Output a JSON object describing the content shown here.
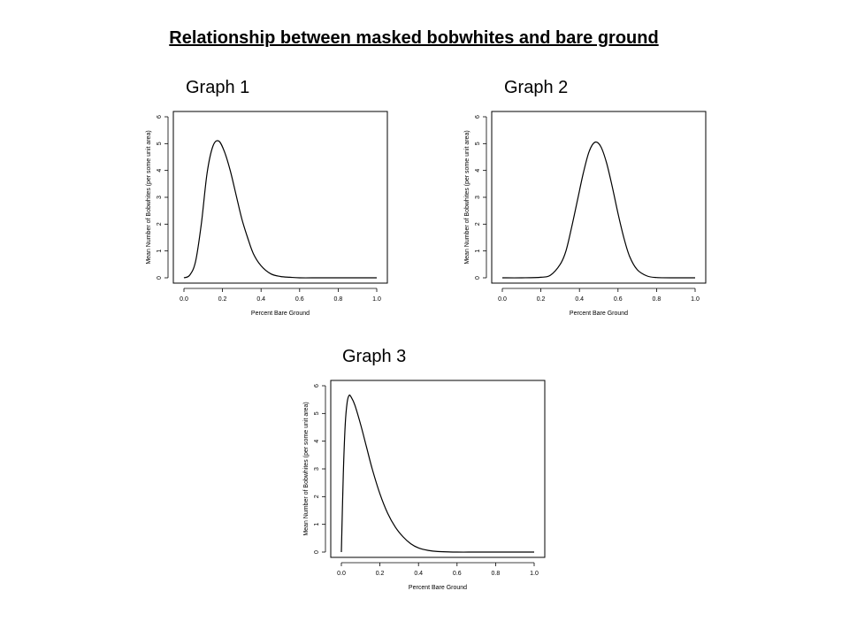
{
  "title": "Relationship between masked bobwhites and bare ground",
  "chart_data": [
    {
      "type": "line",
      "label": "Graph 1",
      "xlabel": "Percent Bare Ground",
      "ylabel": "Mean Number of Bobwhites (per some unit area)",
      "xlim": [
        0.0,
        1.0
      ],
      "ylim": [
        0,
        6
      ],
      "xticks": [
        "0.0",
        "0.2",
        "0.4",
        "0.6",
        "0.8",
        "1.0"
      ],
      "yticks": [
        "0",
        "1",
        "2",
        "3",
        "4",
        "5",
        "6"
      ],
      "grid": false,
      "series": [
        {
          "x": [
            0.0,
            0.03,
            0.06,
            0.09,
            0.12,
            0.15,
            0.18,
            0.21,
            0.24,
            0.27,
            0.3,
            0.33,
            0.36,
            0.4,
            0.45,
            0.5,
            0.55,
            0.6,
            0.7,
            0.8,
            0.9,
            1.0
          ],
          "y": [
            0.0,
            0.1,
            0.6,
            2.0,
            3.9,
            4.9,
            5.1,
            4.7,
            4.0,
            3.1,
            2.2,
            1.5,
            0.9,
            0.45,
            0.15,
            0.05,
            0.02,
            0.0,
            0.0,
            0.0,
            0.0,
            0.0
          ]
        }
      ]
    },
    {
      "type": "line",
      "label": "Graph 2",
      "xlabel": "Percent Bare Ground",
      "ylabel": "Mean Number of Bobwhites (per some unit area)",
      "xlim": [
        0.0,
        1.0
      ],
      "ylim": [
        0,
        6
      ],
      "xticks": [
        "0.0",
        "0.2",
        "0.4",
        "0.6",
        "0.8",
        "1.0"
      ],
      "yticks": [
        "0",
        "1",
        "2",
        "3",
        "4",
        "5",
        "6"
      ],
      "grid": false,
      "series": [
        {
          "x": [
            0.0,
            0.1,
            0.2,
            0.25,
            0.3,
            0.33,
            0.36,
            0.39,
            0.42,
            0.45,
            0.48,
            0.51,
            0.54,
            0.57,
            0.6,
            0.63,
            0.66,
            0.7,
            0.75,
            0.8,
            0.9,
            1.0
          ],
          "y": [
            0.0,
            0.0,
            0.02,
            0.1,
            0.5,
            1.0,
            1.9,
            2.9,
            3.9,
            4.7,
            5.05,
            4.9,
            4.3,
            3.4,
            2.4,
            1.5,
            0.8,
            0.3,
            0.07,
            0.01,
            0.0,
            0.0
          ]
        }
      ]
    },
    {
      "type": "line",
      "label": "Graph 3",
      "xlabel": "Percent Bare Ground",
      "ylabel": "Mean Number of Bobwhites (per some unit area)",
      "xlim": [
        0.0,
        1.0
      ],
      "ylim": [
        0,
        6
      ],
      "xticks": [
        "0.0",
        "0.2",
        "0.4",
        "0.6",
        "0.8",
        "1.0"
      ],
      "yticks": [
        "0",
        "1",
        "2",
        "3",
        "4",
        "5",
        "6"
      ],
      "grid": false,
      "series": [
        {
          "x": [
            0.0,
            0.01,
            0.02,
            0.03,
            0.04,
            0.05,
            0.07,
            0.1,
            0.13,
            0.16,
            0.2,
            0.24,
            0.28,
            0.32,
            0.36,
            0.4,
            0.45,
            0.5,
            0.6,
            0.7,
            0.85,
            1.0
          ],
          "y": [
            0.0,
            2.8,
            4.6,
            5.4,
            5.65,
            5.6,
            5.3,
            4.6,
            3.8,
            3.0,
            2.1,
            1.4,
            0.9,
            0.55,
            0.3,
            0.15,
            0.06,
            0.02,
            0.0,
            0.0,
            0.0,
            0.0
          ]
        }
      ]
    }
  ]
}
